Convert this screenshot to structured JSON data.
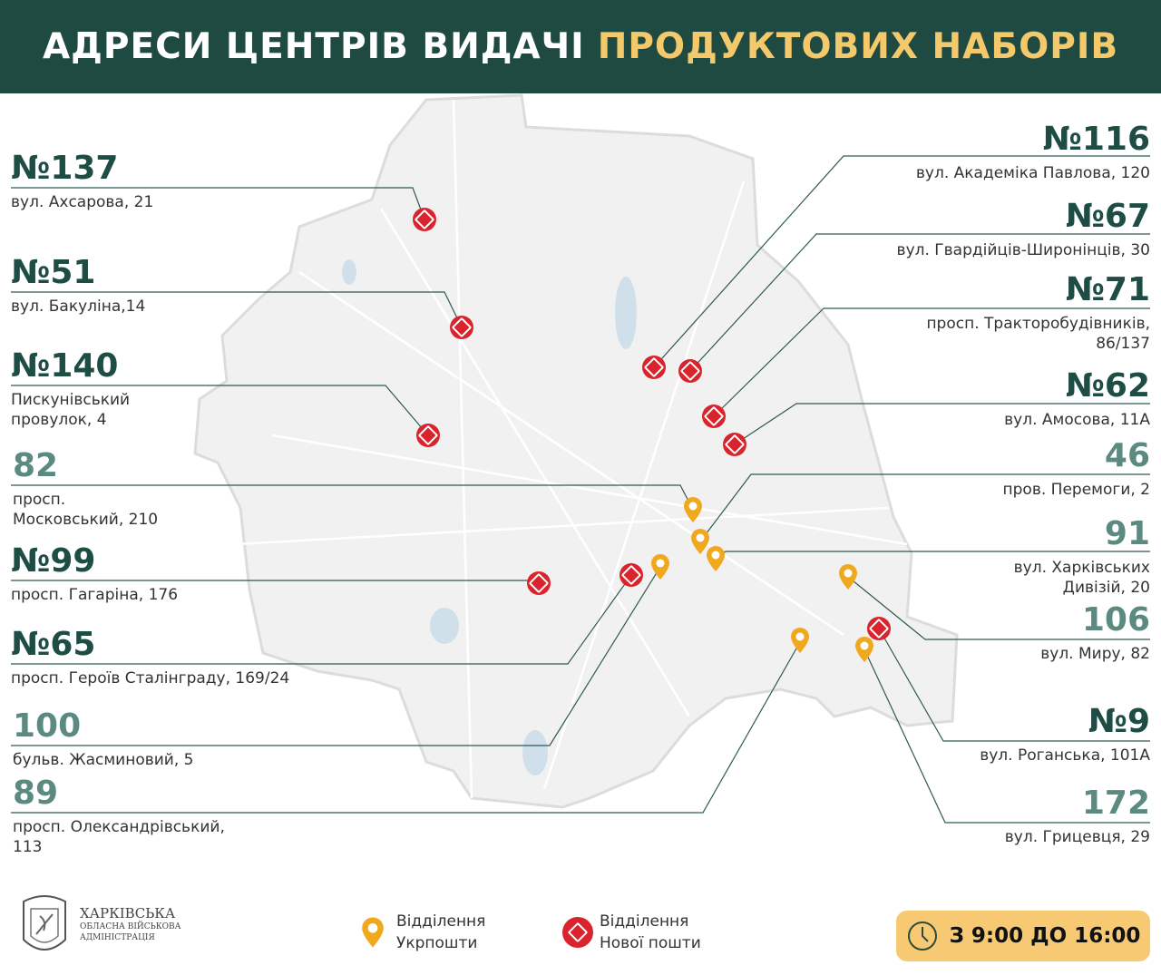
{
  "header": {
    "title_main": "АДРЕСИ ЦЕНТРІВ ВИДАЧІ",
    "title_highlight": "ПРОДУКТОВИХ НАБОРІВ"
  },
  "colors": {
    "header_bg": "#1f4a42",
    "highlight": "#f3c96b",
    "nova_poshta": "#d9232d",
    "ukrposhta": "#f0a81e",
    "number_np": "#1e4d45",
    "number_up": "#5b8a80",
    "time_bg": "#f6c972"
  },
  "left_points": [
    {
      "number": "№137",
      "address": [
        "вул. Ахсарова, 21"
      ],
      "type": "nova-poshta"
    },
    {
      "number": "№51",
      "address": [
        "вул. Бакуліна,14"
      ],
      "type": "nova-poshta"
    },
    {
      "number": "№140",
      "address": [
        "Пискунівський",
        "провулок, 4"
      ],
      "type": "nova-poshta"
    },
    {
      "number": "82",
      "address": [
        "просп.",
        "Московський, 210"
      ],
      "type": "ukrposhta"
    },
    {
      "number": "№99",
      "address": [
        "просп. Гагаріна, 176"
      ],
      "type": "nova-poshta"
    },
    {
      "number": "№65",
      "address": [
        "просп. Героїв Сталінграду, 169/24"
      ],
      "type": "nova-poshta"
    },
    {
      "number": "100",
      "address": [
        "бульв. Жасминовий, 5"
      ],
      "type": "ukrposhta"
    },
    {
      "number": "89",
      "address": [
        "просп. Олександрівський,",
        "113"
      ],
      "type": "ukrposhta"
    }
  ],
  "right_points": [
    {
      "number": "№116",
      "address": [
        "вул. Академіка Павлова, 120"
      ],
      "type": "nova-poshta"
    },
    {
      "number": "№67",
      "address": [
        "вул. Гвардійців-Широнінців, 30"
      ],
      "type": "nova-poshta"
    },
    {
      "number": "№71",
      "address": [
        "просп. Тракторобудівників,",
        "86/137"
      ],
      "type": "nova-poshta"
    },
    {
      "number": "№62",
      "address": [
        "вул. Амосова, 11А"
      ],
      "type": "nova-poshta"
    },
    {
      "number": "46",
      "address": [
        "пров. Перемоги, 2"
      ],
      "type": "ukrposhta"
    },
    {
      "number": "91",
      "address": [
        "вул. Харківських",
        "Дивізій, 20"
      ],
      "type": "ukrposhta"
    },
    {
      "number": "106",
      "address": [
        "вул. Миру, 82"
      ],
      "type": "ukrposhta"
    },
    {
      "number": "№9",
      "address": [
        "вул. Роганська, 101А"
      ],
      "type": "nova-poshta"
    },
    {
      "number": "172",
      "address": [
        "вул. Грицевця, 29"
      ],
      "type": "ukrposhta"
    }
  ],
  "legend": {
    "ukrposhta": [
      "Відділення",
      "Укрпошти"
    ],
    "nova_poshta": [
      "Відділення",
      "Нової пошти"
    ]
  },
  "logo": {
    "name": "ХАРКІВСЬКА",
    "sub1": "ОБЛАСНА ВІЙСЬКОВА",
    "sub2": "АДМІНІСТРАЦІЯ"
  },
  "hours": "З 9:00 ДО 16:00"
}
